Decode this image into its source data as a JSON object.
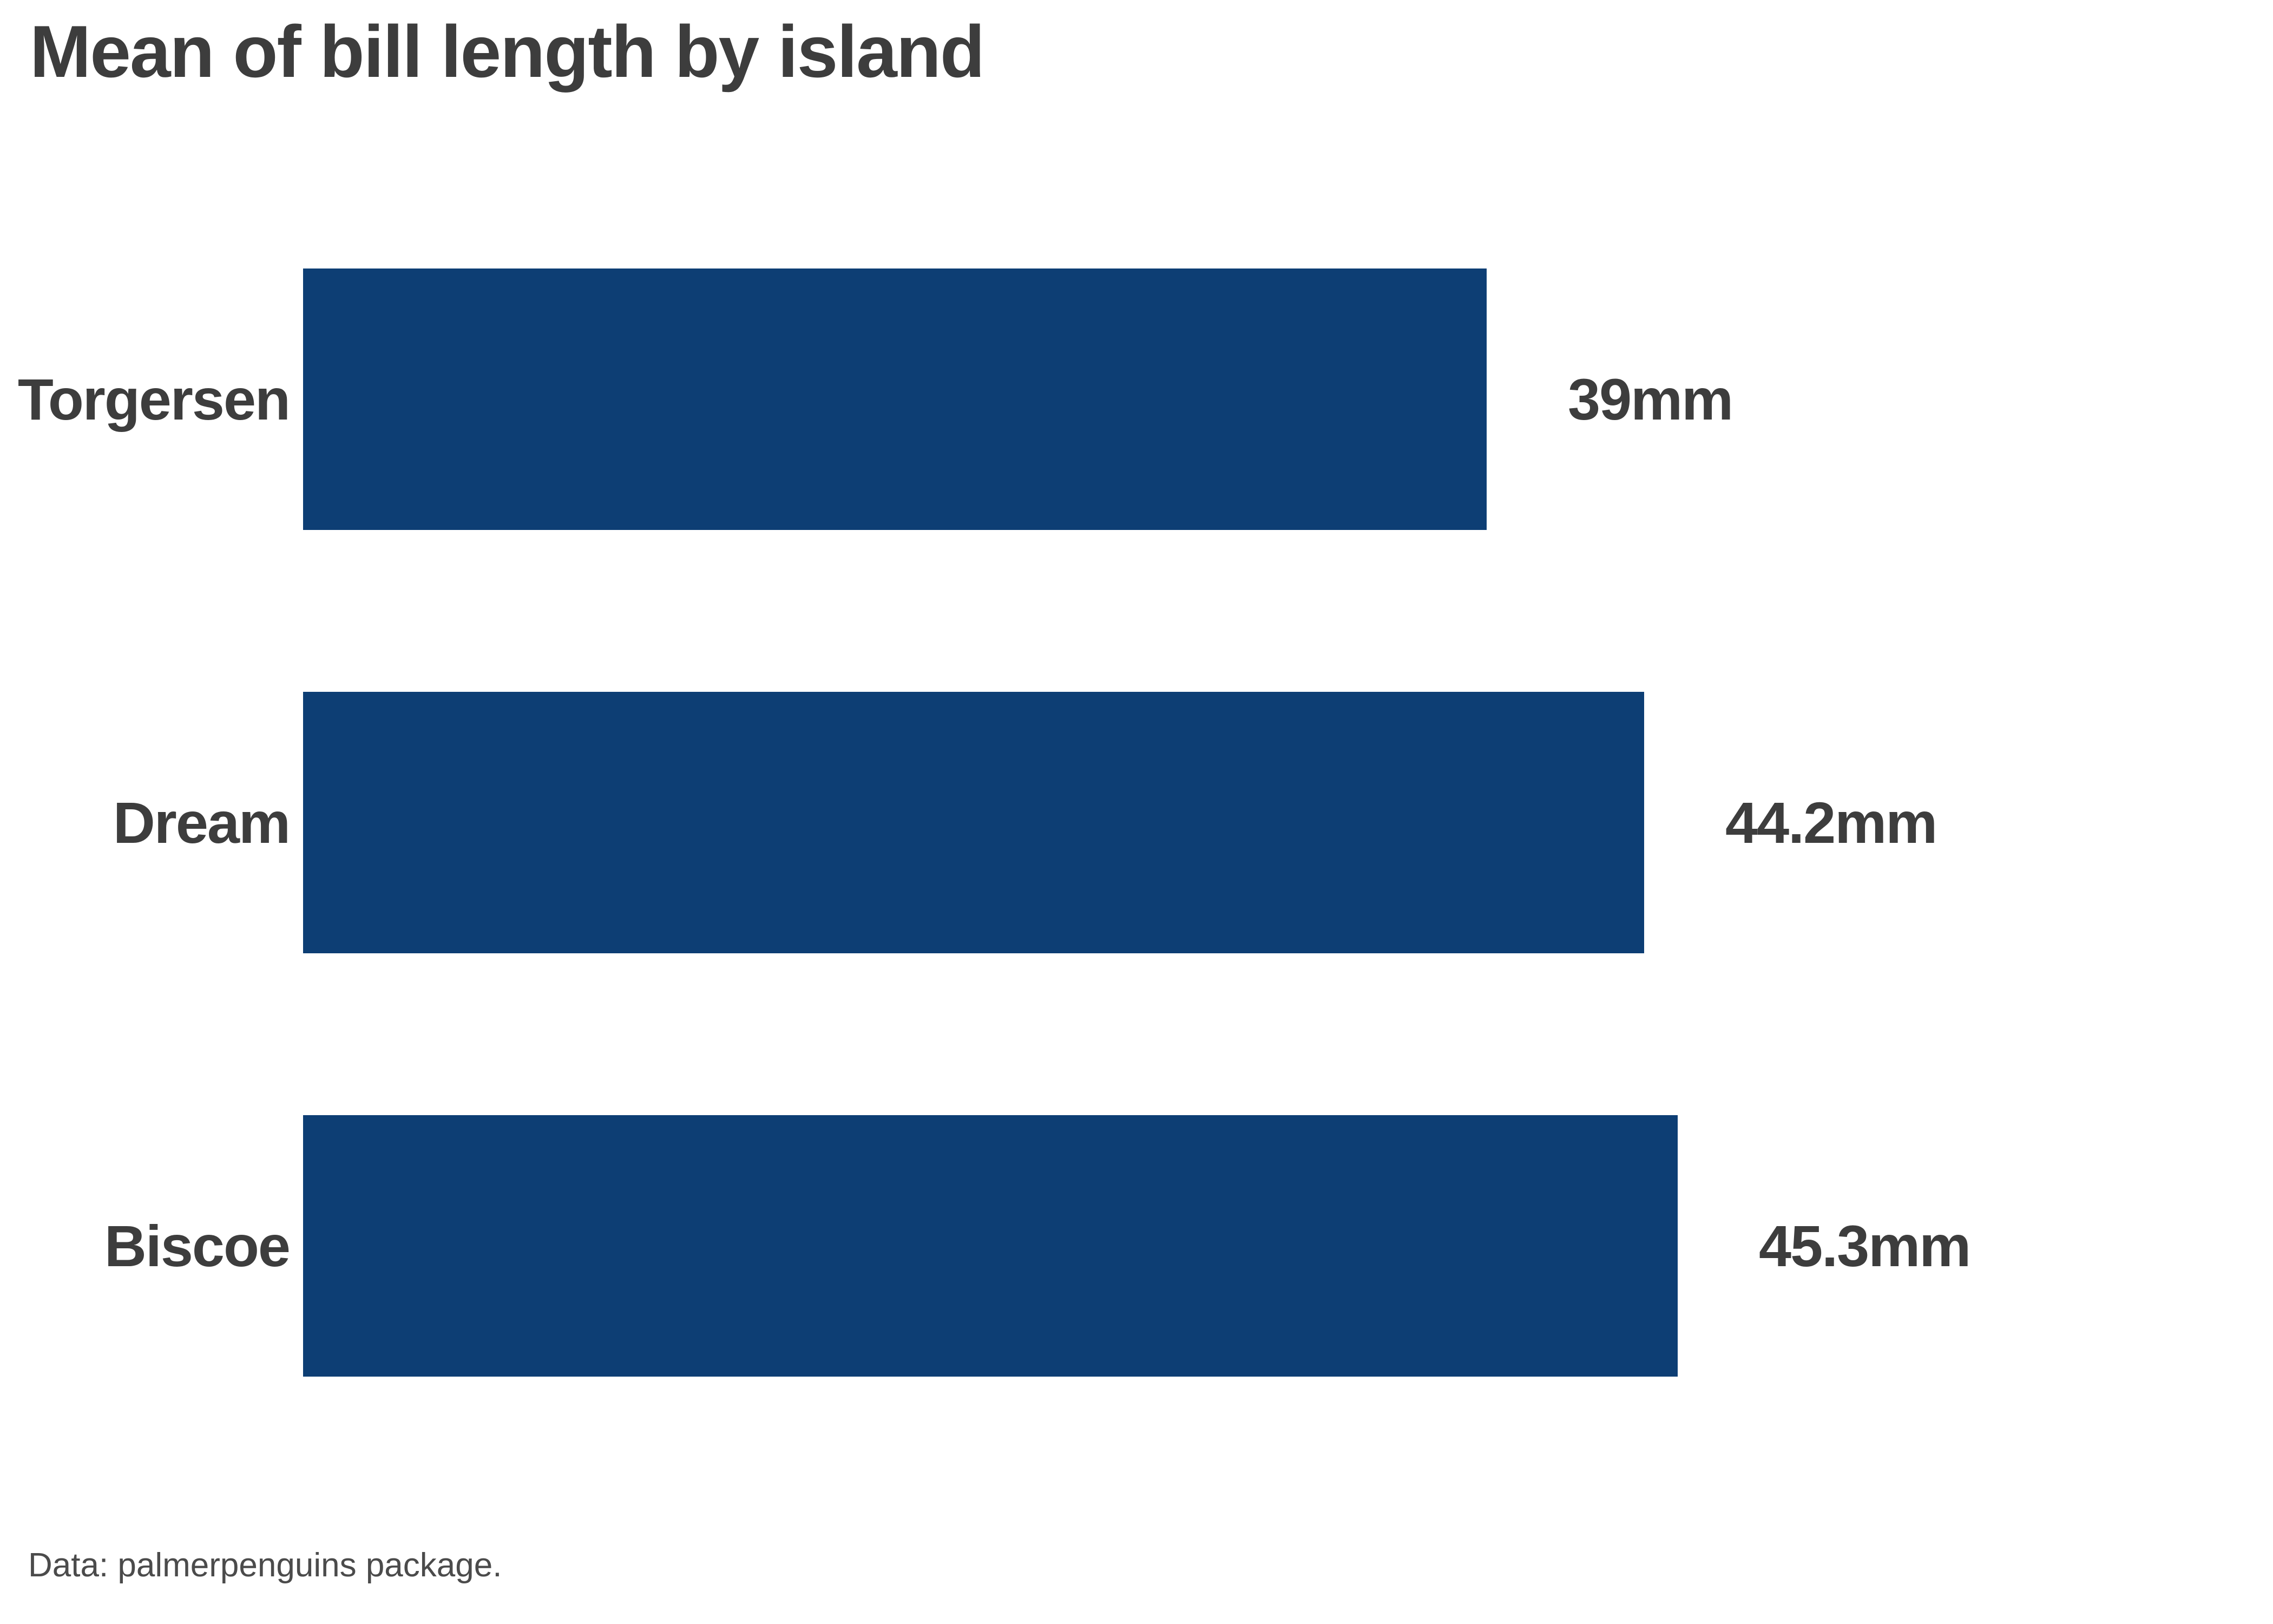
{
  "chart_data": {
    "type": "bar",
    "orientation": "horizontal",
    "title": "Mean of bill length by island",
    "caption": "Data: palmerpenguins package.",
    "categories": [
      "Torgersen",
      "Dream",
      "Biscoe"
    ],
    "values": [
      39,
      44.2,
      45.3
    ],
    "value_labels": [
      "39mm",
      "44.2mm",
      "45.3mm"
    ],
    "unit": "mm",
    "xlim": [
      0,
      45.3
    ],
    "grid": false,
    "legend": false,
    "axis_lines": false,
    "bar_color": "#0D3E74",
    "title_color": "#3D3D3D",
    "label_color": "#3D3D3D",
    "caption_color": "#4B4B4B",
    "background_color": "#FFFFFF"
  }
}
